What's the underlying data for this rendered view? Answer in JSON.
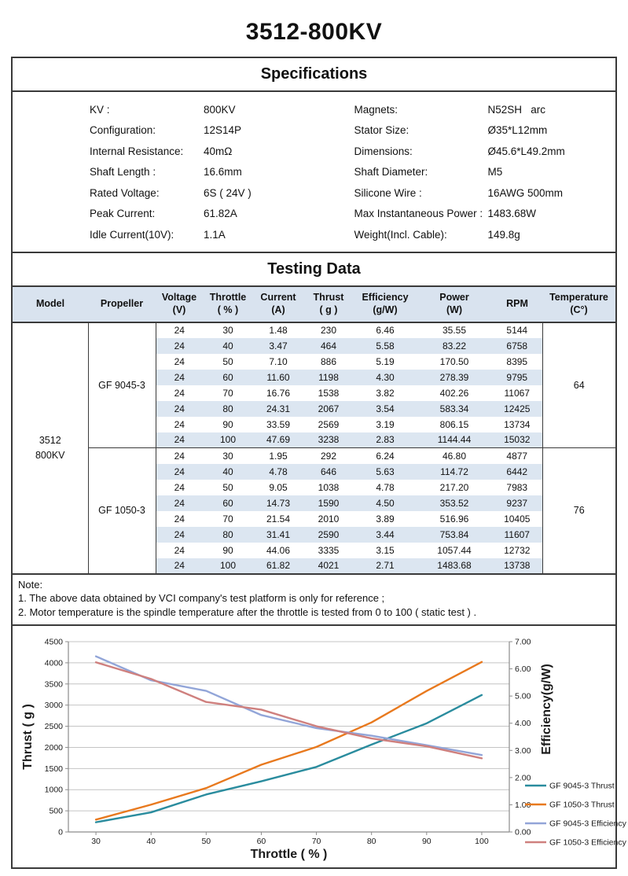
{
  "page": {
    "title": "3512-800KV"
  },
  "specifications": {
    "section_title": "Specifications",
    "left": [
      {
        "label": "KV :",
        "value": "800KV"
      },
      {
        "label": "Configuration:",
        "value": "12S14P"
      },
      {
        "label": "Internal Resistance:",
        "value": "40mΩ"
      },
      {
        "label": "Shaft Length :",
        "value": "16.6mm"
      },
      {
        "label": "Rated Voltage:",
        "value": "6S ( 24V )"
      },
      {
        "label": "Peak Current:",
        "value": "61.82A"
      },
      {
        "label": "Idle Current(10V):",
        "value": "1.1A"
      }
    ],
    "right": [
      {
        "label": "Magnets:",
        "value": "N52SH   arc"
      },
      {
        "label": "Stator Size:",
        "value": "Ø35*L12mm"
      },
      {
        "label": "Dimensions:",
        "value": "Ø45.6*L49.2mm"
      },
      {
        "label": "Shaft Diameter:",
        "value": "M5"
      },
      {
        "label": "Silicone Wire :",
        "value": "16AWG 500mm"
      },
      {
        "label": "Max Instantaneous Power :",
        "value": "1483.68W"
      },
      {
        "label": "Weight(Incl. Cable):",
        "value": "149.8g"
      }
    ]
  },
  "testing": {
    "section_title": "Testing Data",
    "columns": [
      "Model",
      "Propeller",
      "Voltage\n(V)",
      "Throttle\n( % )",
      "Current\n(A)",
      "Thrust\n( g )",
      "Efficiency\n(g/W)",
      "Power\n(W)",
      "RPM",
      "Temperature\n(C°)"
    ],
    "model": "3512\n800KV",
    "groups": [
      {
        "propeller": "GF 9045-3",
        "temperature": "64",
        "rows": [
          [
            "24",
            "30",
            "1.48",
            "230",
            "6.46",
            "35.55",
            "5144"
          ],
          [
            "24",
            "40",
            "3.47",
            "464",
            "5.58",
            "83.22",
            "6758"
          ],
          [
            "24",
            "50",
            "7.10",
            "886",
            "5.19",
            "170.50",
            "8395"
          ],
          [
            "24",
            "60",
            "11.60",
            "1198",
            "4.30",
            "278.39",
            "9795"
          ],
          [
            "24",
            "70",
            "16.76",
            "1538",
            "3.82",
            "402.26",
            "11067"
          ],
          [
            "24",
            "80",
            "24.31",
            "2067",
            "3.54",
            "583.34",
            "12425"
          ],
          [
            "24",
            "90",
            "33.59",
            "2569",
            "3.19",
            "806.15",
            "13734"
          ],
          [
            "24",
            "100",
            "47.69",
            "3238",
            "2.83",
            "1144.44",
            "15032"
          ]
        ]
      },
      {
        "propeller": "GF 1050-3",
        "temperature": "76",
        "rows": [
          [
            "24",
            "30",
            "1.95",
            "292",
            "6.24",
            "46.80",
            "4877"
          ],
          [
            "24",
            "40",
            "4.78",
            "646",
            "5.63",
            "114.72",
            "6442"
          ],
          [
            "24",
            "50",
            "9.05",
            "1038",
            "4.78",
            "217.20",
            "7983"
          ],
          [
            "24",
            "60",
            "14.73",
            "1590",
            "4.50",
            "353.52",
            "9237"
          ],
          [
            "24",
            "70",
            "21.54",
            "2010",
            "3.89",
            "516.96",
            "10405"
          ],
          [
            "24",
            "80",
            "31.41",
            "2590",
            "3.44",
            "753.84",
            "11607"
          ],
          [
            "24",
            "90",
            "44.06",
            "3335",
            "3.15",
            "1057.44",
            "12732"
          ],
          [
            "24",
            "100",
            "61.82",
            "4021",
            "2.71",
            "1483.68",
            "13738"
          ]
        ]
      }
    ]
  },
  "note": {
    "title": "Note:",
    "lines": [
      "1.  The above data obtained by VCI company's test platform is only for reference ;",
      "2.  Motor temperature is the spindle temperature after the throttle is tested from 0 to 100 ( static test ) ."
    ]
  },
  "chart_data": {
    "type": "line",
    "x": [
      30,
      40,
      50,
      60,
      70,
      80,
      90,
      100
    ],
    "xlabel": "Throttle ( % )",
    "ylabel_left": "Thrust ( g )",
    "ylabel_right": "Efficiency(g/W)",
    "ylim_left": [
      0,
      4500
    ],
    "ytick_step_left": 500,
    "ylim_right": [
      0,
      7
    ],
    "ytick_step_right": 1,
    "grid": true,
    "legend_position": "right",
    "colors": {
      "grid": "#C4C4C4",
      "axis": "#8C8C8C",
      "text": "#1a1a1a"
    },
    "series": [
      {
        "name": "GF 9045-3 Thrust",
        "axis": "left",
        "color": "#2A8C9E",
        "values": [
          230,
          464,
          886,
          1198,
          1538,
          2067,
          2569,
          3238
        ]
      },
      {
        "name": "GF 1050-3 Thrust",
        "axis": "left",
        "color": "#E8791E",
        "values": [
          292,
          646,
          1038,
          1590,
          2010,
          2590,
          3335,
          4021
        ]
      },
      {
        "name": "GF 9045-3 Efficiency",
        "axis": "right",
        "color": "#92A5D8",
        "values": [
          6.46,
          5.58,
          5.19,
          4.3,
          3.82,
          3.54,
          3.19,
          2.83
        ]
      },
      {
        "name": "GF 1050-3 Efficiency",
        "axis": "right",
        "color": "#CF807E",
        "values": [
          6.24,
          5.63,
          4.78,
          4.5,
          3.89,
          3.44,
          3.15,
          2.71
        ]
      }
    ]
  }
}
